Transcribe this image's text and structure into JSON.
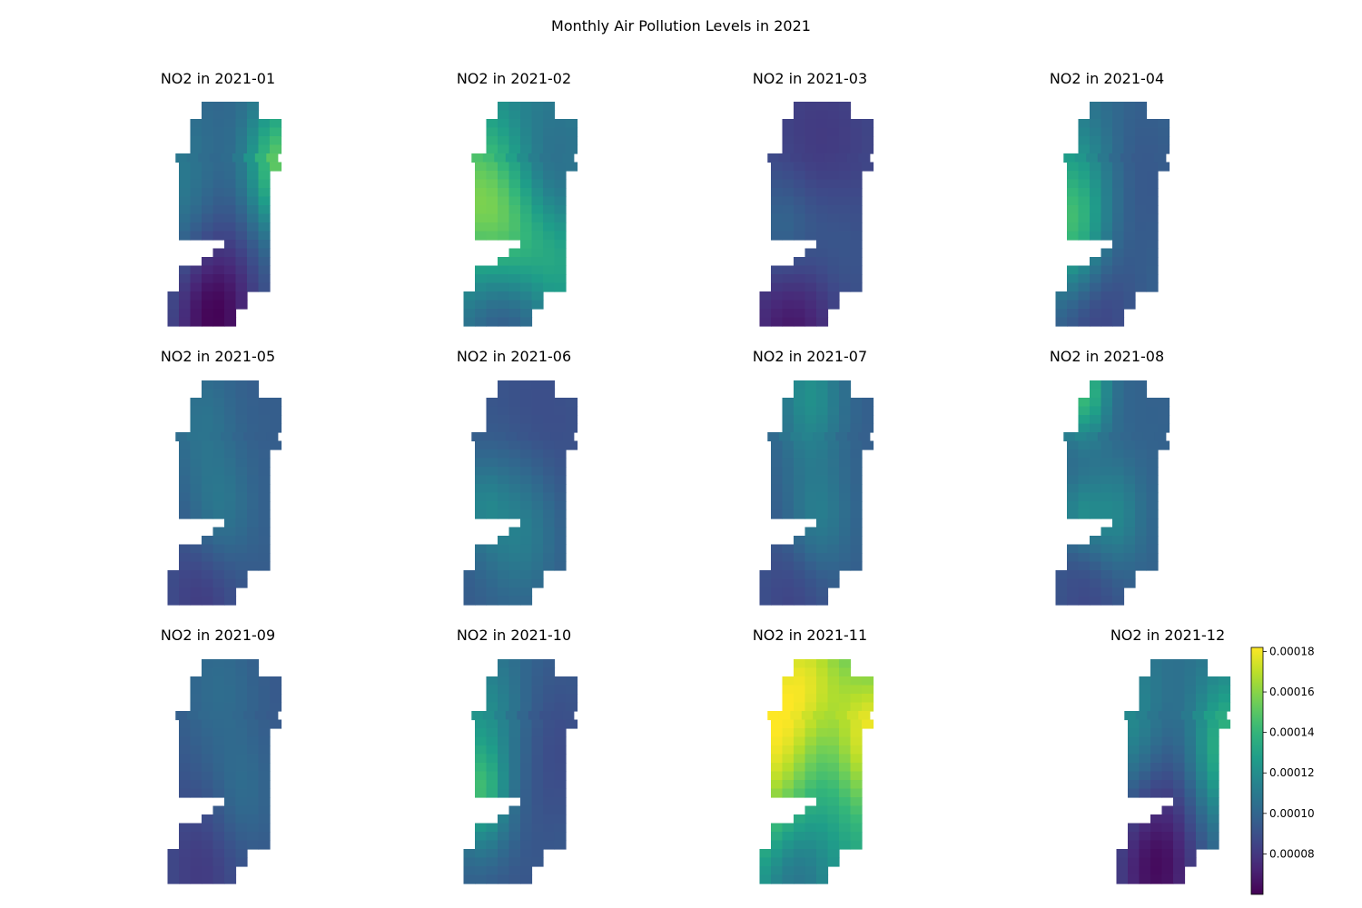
{
  "figure": {
    "title": "Monthly Air Pollution Levels in 2021"
  },
  "chart_data": {
    "type": "heatmap",
    "colormap": "viridis",
    "title": "Monthly Air Pollution Levels in 2021",
    "colorbar": {
      "range": [
        6e-05,
        0.000182
      ],
      "ticks": [
        8e-05,
        0.0001,
        0.00012,
        0.00014,
        0.00016,
        0.00018
      ],
      "tick_labels": [
        "0.00008",
        "0.00010",
        "0.00012",
        "0.00014",
        "0.00016",
        "0.00018"
      ]
    },
    "panels": [
      {
        "title": "NO2 in 2021-01",
        "base": 0.0001,
        "hotspots": [
          {
            "u": 0.95,
            "v": 0.28,
            "r": 0.22,
            "d": 5.5e-05
          },
          {
            "u": 0.15,
            "v": 0.42,
            "r": 0.3,
            "d": 1.8e-05
          },
          {
            "u": 0.35,
            "v": 0.97,
            "r": 0.28,
            "d": -4e-05
          },
          {
            "u": 0.45,
            "v": 0.4,
            "r": 0.3,
            "d": -1.2e-05
          }
        ]
      },
      {
        "title": "NO2 in 2021-02",
        "base": 0.000112,
        "hotspots": [
          {
            "u": 0.08,
            "v": 0.45,
            "r": 0.3,
            "d": 4.5e-05
          },
          {
            "u": 0.45,
            "v": 0.62,
            "r": 0.22,
            "d": 2.5e-05
          },
          {
            "u": 0.65,
            "v": 0.38,
            "r": 0.25,
            "d": -1.5e-05
          },
          {
            "u": 0.8,
            "v": 0.72,
            "r": 0.2,
            "d": 2e-05
          },
          {
            "u": 0.3,
            "v": 0.97,
            "r": 0.28,
            "d": -2.5e-05
          }
        ]
      },
      {
        "title": "NO2 in 2021-03",
        "base": 9e-05,
        "hotspots": [
          {
            "u": 0.5,
            "v": 0.3,
            "r": 0.35,
            "d": -1.2e-05
          },
          {
            "u": 0.15,
            "v": 0.6,
            "r": 0.2,
            "d": 2e-05
          },
          {
            "u": 0.55,
            "v": 0.65,
            "r": 0.25,
            "d": 1.5e-05
          },
          {
            "u": 0.25,
            "v": 0.97,
            "r": 0.3,
            "d": -2.5e-05
          }
        ]
      },
      {
        "title": "NO2 in 2021-04",
        "base": 0.0001,
        "hotspots": [
          {
            "u": 0.1,
            "v": 0.4,
            "r": 0.3,
            "d": 2.8e-05
          },
          {
            "u": 0.1,
            "v": 0.6,
            "r": 0.2,
            "d": 2.5e-05
          },
          {
            "u": 0.6,
            "v": 0.35,
            "r": 0.28,
            "d": -1e-05
          },
          {
            "u": 0.3,
            "v": 0.95,
            "r": 0.25,
            "d": -1.8e-05
          }
        ]
      },
      {
        "title": "NO2 in 2021-05",
        "base": 9.6e-05,
        "hotspots": [
          {
            "u": 0.4,
            "v": 0.6,
            "r": 0.2,
            "d": 1.5e-05
          },
          {
            "u": 0.25,
            "v": 0.15,
            "r": 0.2,
            "d": 1e-05
          },
          {
            "u": 0.25,
            "v": 0.97,
            "r": 0.25,
            "d": -1.5e-05
          }
        ]
      },
      {
        "title": "NO2 in 2021-06",
        "base": 9.4e-05,
        "hotspots": [
          {
            "u": 0.45,
            "v": 0.64,
            "r": 0.25,
            "d": 2.2e-05
          },
          {
            "u": 0.1,
            "v": 0.55,
            "r": 0.15,
            "d": 1.5e-05
          },
          {
            "u": 0.6,
            "v": 0.3,
            "r": 0.3,
            "d": -8e-06
          }
        ]
      },
      {
        "title": "NO2 in 2021-07",
        "base": 9.6e-05,
        "hotspots": [
          {
            "u": 0.4,
            "v": 0.05,
            "r": 0.2,
            "d": 2.5e-05
          },
          {
            "u": 0.45,
            "v": 0.62,
            "r": 0.2,
            "d": 1.8e-05
          },
          {
            "u": 0.25,
            "v": 0.97,
            "r": 0.25,
            "d": -1.2e-05
          }
        ]
      },
      {
        "title": "NO2 in 2021-08",
        "base": 9.8e-05,
        "hotspots": [
          {
            "u": 0.2,
            "v": 0.03,
            "r": 0.15,
            "d": 4.5e-05
          },
          {
            "u": 0.45,
            "v": 0.62,
            "r": 0.18,
            "d": 2.2e-05
          },
          {
            "u": 0.15,
            "v": 0.6,
            "r": 0.12,
            "d": 1.8e-05
          },
          {
            "u": 0.25,
            "v": 0.97,
            "r": 0.25,
            "d": -1.2e-05
          }
        ]
      },
      {
        "title": "NO2 in 2021-09",
        "base": 9.3e-05,
        "hotspots": [
          {
            "u": 0.4,
            "v": 0.1,
            "r": 0.25,
            "d": 1e-05
          },
          {
            "u": 0.6,
            "v": 0.62,
            "r": 0.2,
            "d": 1e-05
          },
          {
            "u": 0.25,
            "v": 0.95,
            "r": 0.25,
            "d": -1.2e-05
          }
        ]
      },
      {
        "title": "NO2 in 2021-10",
        "base": 9.8e-05,
        "hotspots": [
          {
            "u": 0.1,
            "v": 0.3,
            "r": 0.3,
            "d": 2.5e-05
          },
          {
            "u": 0.1,
            "v": 0.6,
            "r": 0.15,
            "d": 3e-05
          },
          {
            "u": 0.7,
            "v": 0.4,
            "r": 0.3,
            "d": -1.2e-05
          },
          {
            "u": 0.2,
            "v": 0.85,
            "r": 0.2,
            "d": 1.2e-05
          },
          {
            "u": 0.25,
            "v": 0.97,
            "r": 0.25,
            "d": -1.2e-05
          }
        ]
      },
      {
        "title": "NO2 in 2021-11",
        "base": 0.00013,
        "hotspots": [
          {
            "u": 0.05,
            "v": 0.4,
            "r": 0.35,
            "d": 5e-05
          },
          {
            "u": 0.95,
            "v": 0.35,
            "r": 0.25,
            "d": 5e-05
          },
          {
            "u": 0.4,
            "v": 0.05,
            "r": 0.25,
            "d": 3e-05
          },
          {
            "u": 0.5,
            "v": 0.42,
            "r": 0.25,
            "d": -1.5e-05
          },
          {
            "u": 0.25,
            "v": 0.97,
            "r": 0.25,
            "d": -3e-05
          }
        ]
      },
      {
        "title": "NO2 in 2021-12",
        "base": 0.000105,
        "hotspots": [
          {
            "u": 0.92,
            "v": 0.4,
            "r": 0.25,
            "d": 4e-05
          },
          {
            "u": 0.1,
            "v": 0.3,
            "r": 0.25,
            "d": 2e-05
          },
          {
            "u": 0.45,
            "v": 0.42,
            "r": 0.28,
            "d": -1.5e-05
          },
          {
            "u": 0.3,
            "v": 0.97,
            "r": 0.3,
            "d": -4e-05
          }
        ]
      }
    ]
  }
}
